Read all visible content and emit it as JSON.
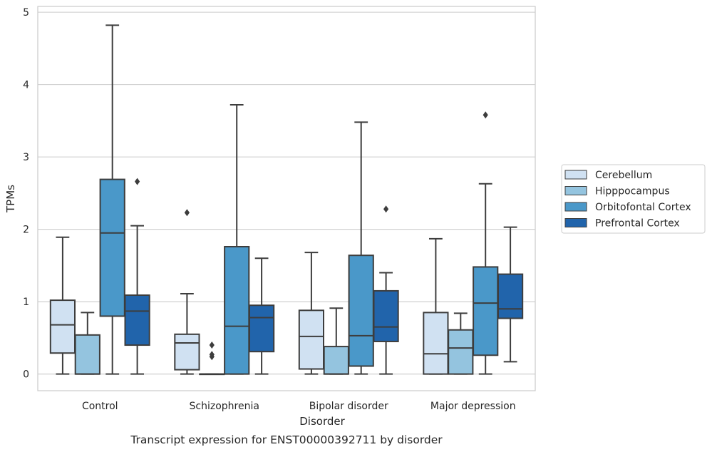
{
  "chart_data": {
    "type": "box",
    "title": "Transcript expression for ENST00000392711 by disorder",
    "xlabel": "Disorder",
    "ylabel": "TPMs",
    "ylim": [
      -0.23,
      5.08
    ],
    "yticks": [
      0,
      1,
      2,
      3,
      4,
      5
    ],
    "grid": true,
    "legend_position": "right",
    "categories": [
      "Control",
      "Schizophrenia",
      "Bipolar disorder",
      "Major depression"
    ],
    "series": [
      {
        "name": "Cerebellum",
        "color": "#d0e1f2",
        "boxes": [
          {
            "whislo": 0.0,
            "q1": 0.29,
            "med": 0.68,
            "q3": 1.02,
            "whishi": 1.89,
            "fliers": []
          },
          {
            "whislo": 0.0,
            "q1": 0.06,
            "med": 0.43,
            "q3": 0.55,
            "whishi": 1.11,
            "fliers": [
              2.23
            ]
          },
          {
            "whislo": 0.0,
            "q1": 0.07,
            "med": 0.52,
            "q3": 0.88,
            "whishi": 1.68,
            "fliers": []
          },
          {
            "whislo": 0.0,
            "q1": 0.0,
            "med": 0.28,
            "q3": 0.85,
            "whishi": 1.87,
            "fliers": []
          }
        ]
      },
      {
        "name": "Hipppocampus",
        "color": "#94c4df",
        "boxes": [
          {
            "whislo": 0.0,
            "q1": 0.0,
            "med": 0.0,
            "q3": 0.54,
            "whishi": 0.85,
            "fliers": []
          },
          {
            "whislo": 0.0,
            "q1": 0.0,
            "med": 0.0,
            "q3": 0.0,
            "whishi": 0.0,
            "fliers": [
              0.24,
              0.27,
              0.4
            ]
          },
          {
            "whislo": 0.0,
            "q1": 0.0,
            "med": 0.0,
            "q3": 0.38,
            "whishi": 0.91,
            "fliers": []
          },
          {
            "whislo": 0.0,
            "q1": 0.0,
            "med": 0.36,
            "q3": 0.61,
            "whishi": 0.84,
            "fliers": []
          }
        ]
      },
      {
        "name": "Orbitofontal Cortex",
        "color": "#4a98c9",
        "boxes": [
          {
            "whislo": 0.0,
            "q1": 0.8,
            "med": 1.95,
            "q3": 2.69,
            "whishi": 4.82,
            "fliers": []
          },
          {
            "whislo": 0.0,
            "q1": 0.0,
            "med": 0.66,
            "q3": 1.76,
            "whishi": 3.72,
            "fliers": []
          },
          {
            "whislo": 0.0,
            "q1": 0.11,
            "med": 0.53,
            "q3": 1.64,
            "whishi": 3.48,
            "fliers": []
          },
          {
            "whislo": 0.0,
            "q1": 0.26,
            "med": 0.98,
            "q3": 1.48,
            "whishi": 2.63,
            "fliers": [
              3.58
            ]
          }
        ]
      },
      {
        "name": "Prefrontal Cortex",
        "color": "#2164ab",
        "boxes": [
          {
            "whislo": 0.0,
            "q1": 0.4,
            "med": 0.87,
            "q3": 1.09,
            "whishi": 2.05,
            "fliers": [
              2.66
            ]
          },
          {
            "whislo": 0.0,
            "q1": 0.31,
            "med": 0.78,
            "q3": 0.95,
            "whishi": 1.6,
            "fliers": []
          },
          {
            "whislo": 0.0,
            "q1": 0.45,
            "med": 0.65,
            "q3": 1.15,
            "whishi": 1.4,
            "fliers": [
              2.28
            ]
          },
          {
            "whislo": 0.17,
            "q1": 0.77,
            "med": 0.9,
            "q3": 1.38,
            "whishi": 2.03,
            "fliers": []
          }
        ]
      }
    ]
  }
}
